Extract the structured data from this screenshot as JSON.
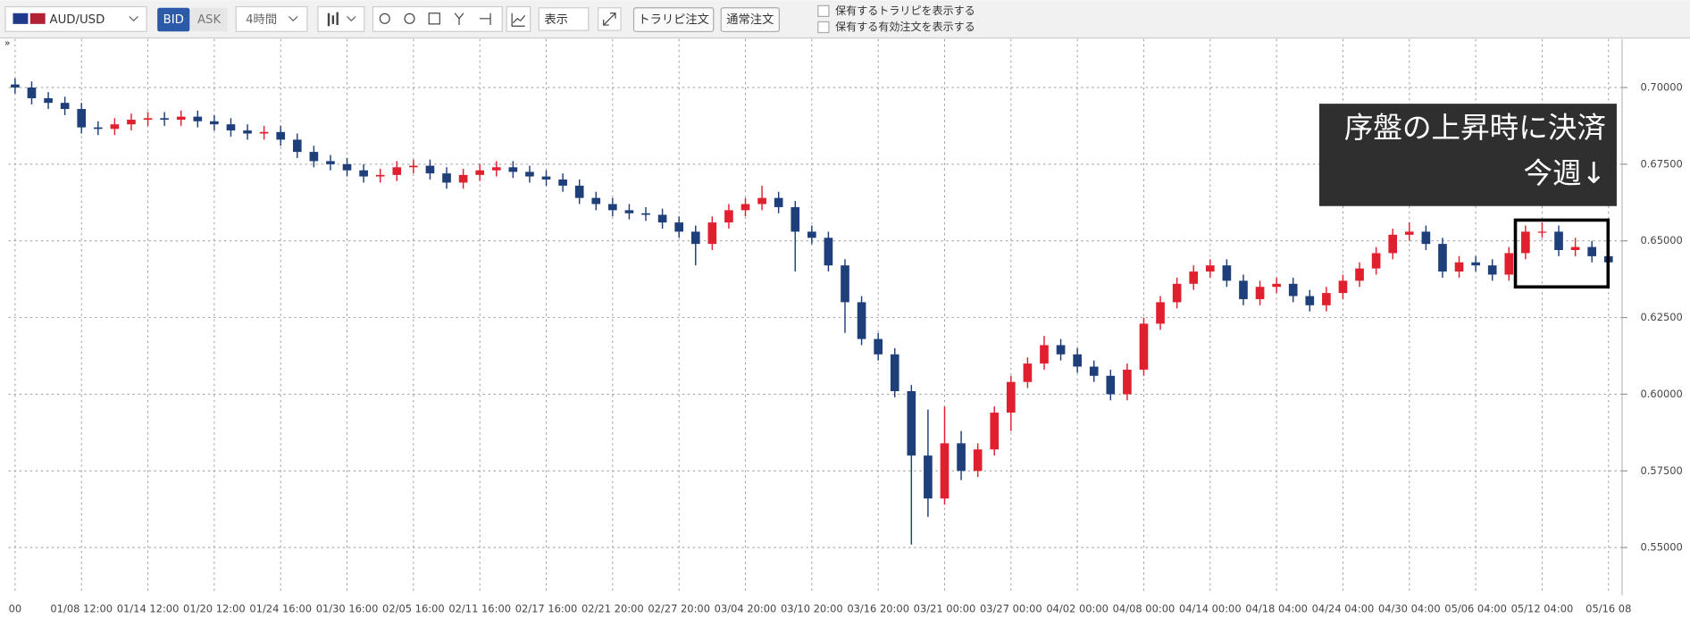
{
  "toolbar": {
    "pair": "AUD/USD",
    "bid": "BID",
    "ask": "ASK",
    "timeframe": "4時間",
    "display": "表示",
    "trapi_order": "トラリピ注文",
    "normal_order": "通常注文",
    "check1": "保有するトラリピを表示する",
    "check2": "保有する有効注文を表示する"
  },
  "chart_data": {
    "type": "candlestick",
    "annotations": [
      "序盤の上昇時に決済",
      "今週↓"
    ],
    "categories": [
      "00",
      null,
      null,
      null,
      "01/08 12:00",
      null,
      null,
      null,
      "01/14 12:00",
      null,
      null,
      null,
      "01/20 12:00",
      null,
      null,
      null,
      "01/24 16:00",
      null,
      null,
      null,
      "01/30 16:00",
      null,
      null,
      null,
      "02/05 16:00",
      null,
      null,
      null,
      "02/11 16:00",
      null,
      null,
      null,
      "02/17 16:00",
      null,
      null,
      null,
      "02/21 20:00",
      null,
      null,
      null,
      "02/27 20:00",
      null,
      null,
      null,
      "03/04 20:00",
      null,
      null,
      null,
      "03/10 20:00",
      null,
      null,
      null,
      "03/16 20:00",
      null,
      null,
      null,
      "03/21 00:00",
      null,
      null,
      null,
      "03/27 00:00",
      null,
      null,
      null,
      "04/02 00:00",
      null,
      null,
      null,
      "04/08 00:00",
      null,
      null,
      null,
      "04/14 00:00",
      null,
      null,
      null,
      "04/18 04:00",
      null,
      null,
      null,
      "04/24 04:00",
      null,
      null,
      null,
      "04/30 04:00",
      null,
      null,
      null,
      "05/06 04:00",
      null,
      null,
      null,
      "05/12 04:00",
      null,
      null,
      null,
      "05/16 08"
    ],
    "open": [
      0.701,
      0.7,
      0.6965,
      0.695,
      0.693,
      0.687,
      0.6865,
      0.688,
      0.6895,
      0.69,
      0.6895,
      0.6905,
      0.689,
      0.688,
      0.686,
      0.685,
      0.6855,
      0.683,
      0.679,
      0.676,
      0.675,
      0.673,
      0.671,
      0.6715,
      0.674,
      0.6745,
      0.672,
      0.669,
      0.6715,
      0.673,
      0.674,
      0.6725,
      0.671,
      0.67,
      0.668,
      0.664,
      0.662,
      0.66,
      0.659,
      0.6585,
      0.656,
      0.653,
      0.649,
      0.656,
      0.66,
      0.662,
      0.664,
      0.661,
      0.653,
      0.651,
      0.642,
      0.63,
      0.618,
      0.613,
      0.601,
      0.58,
      0.566,
      0.584,
      0.575,
      0.582,
      0.594,
      0.604,
      0.61,
      0.616,
      0.613,
      0.609,
      0.606,
      0.6,
      0.608,
      0.623,
      0.63,
      0.636,
      0.64,
      0.642,
      0.637,
      0.631,
      0.635,
      0.636,
      0.632,
      0.629,
      0.633,
      0.637,
      0.641,
      0.646,
      0.652,
      0.653,
      0.649,
      0.64,
      0.643,
      0.642,
      0.639,
      0.646,
      0.653,
      0.653,
      0.647,
      0.648,
      0.645
    ],
    "high": [
      0.703,
      0.702,
      0.6985,
      0.697,
      0.695,
      0.689,
      0.69,
      0.6915,
      0.692,
      0.692,
      0.6925,
      0.6925,
      0.691,
      0.69,
      0.688,
      0.6875,
      0.6875,
      0.685,
      0.681,
      0.678,
      0.677,
      0.675,
      0.6735,
      0.676,
      0.6765,
      0.6765,
      0.674,
      0.6735,
      0.675,
      0.676,
      0.676,
      0.6745,
      0.673,
      0.672,
      0.67,
      0.666,
      0.664,
      0.662,
      0.661,
      0.6605,
      0.658,
      0.655,
      0.658,
      0.662,
      0.664,
      0.668,
      0.666,
      0.663,
      0.655,
      0.653,
      0.644,
      0.632,
      0.62,
      0.615,
      0.603,
      0.595,
      0.596,
      0.588,
      0.584,
      0.596,
      0.606,
      0.612,
      0.619,
      0.618,
      0.615,
      0.611,
      0.608,
      0.61,
      0.625,
      0.632,
      0.638,
      0.642,
      0.644,
      0.644,
      0.639,
      0.637,
      0.638,
      0.638,
      0.634,
      0.635,
      0.639,
      0.643,
      0.648,
      0.654,
      0.656,
      0.655,
      0.651,
      0.645,
      0.645,
      0.644,
      0.648,
      0.655,
      0.656,
      0.655,
      0.651,
      0.65,
      0.647
    ],
    "low": [
      0.698,
      0.6945,
      0.693,
      0.691,
      0.685,
      0.6845,
      0.6845,
      0.686,
      0.6875,
      0.6875,
      0.6875,
      0.687,
      0.686,
      0.684,
      0.683,
      0.683,
      0.681,
      0.677,
      0.674,
      0.673,
      0.671,
      0.669,
      0.669,
      0.6695,
      0.672,
      0.67,
      0.667,
      0.667,
      0.6695,
      0.671,
      0.6705,
      0.669,
      0.668,
      0.666,
      0.662,
      0.66,
      0.658,
      0.657,
      0.6565,
      0.654,
      0.651,
      0.642,
      0.647,
      0.654,
      0.658,
      0.66,
      0.659,
      0.64,
      0.649,
      0.64,
      0.62,
      0.616,
      0.611,
      0.599,
      0.551,
      0.56,
      0.564,
      0.572,
      0.573,
      0.58,
      0.588,
      0.602,
      0.608,
      0.611,
      0.607,
      0.604,
      0.598,
      0.598,
      0.606,
      0.621,
      0.628,
      0.634,
      0.638,
      0.635,
      0.629,
      0.629,
      0.633,
      0.63,
      0.627,
      0.627,
      0.631,
      0.635,
      0.639,
      0.644,
      0.65,
      0.647,
      0.638,
      0.638,
      0.64,
      0.637,
      0.637,
      0.644,
      0.651,
      0.645,
      0.645,
      0.643,
      0.641
    ],
    "close": [
      0.7,
      0.6965,
      0.695,
      0.693,
      0.687,
      0.6865,
      0.688,
      0.6895,
      0.69,
      0.6895,
      0.6905,
      0.689,
      0.688,
      0.686,
      0.685,
      0.6855,
      0.683,
      0.679,
      0.676,
      0.675,
      0.673,
      0.671,
      0.6715,
      0.674,
      0.6745,
      0.672,
      0.669,
      0.6715,
      0.673,
      0.674,
      0.6725,
      0.671,
      0.67,
      0.668,
      0.664,
      0.662,
      0.66,
      0.659,
      0.6585,
      0.656,
      0.653,
      0.649,
      0.656,
      0.66,
      0.662,
      0.664,
      0.661,
      0.653,
      0.651,
      0.642,
      0.63,
      0.618,
      0.613,
      0.601,
      0.58,
      0.566,
      0.584,
      0.575,
      0.582,
      0.594,
      0.604,
      0.61,
      0.616,
      0.613,
      0.609,
      0.606,
      0.6,
      0.608,
      0.623,
      0.63,
      0.636,
      0.64,
      0.642,
      0.637,
      0.631,
      0.635,
      0.636,
      0.632,
      0.629,
      0.633,
      0.637,
      0.641,
      0.646,
      0.652,
      0.653,
      0.649,
      0.64,
      0.643,
      0.642,
      0.639,
      0.646,
      0.653,
      0.653,
      0.647,
      0.648,
      0.645,
      0.643
    ],
    "up_color": "#e0202e",
    "down_color": "#1f3f7a",
    "ylim": [
      0.5352,
      0.7158
    ],
    "yticks": [
      {
        "value": 0.55,
        "label": "0.55000"
      },
      {
        "value": 0.575,
        "label": "0.57500"
      },
      {
        "value": 0.6,
        "label": "0.60000"
      },
      {
        "value": 0.625,
        "label": "0.62500"
      },
      {
        "value": 0.65,
        "label": "0.65000"
      },
      {
        "value": 0.675,
        "label": "0.67500"
      },
      {
        "value": 0.7,
        "label": "0.70000"
      }
    ],
    "grid": true
  }
}
